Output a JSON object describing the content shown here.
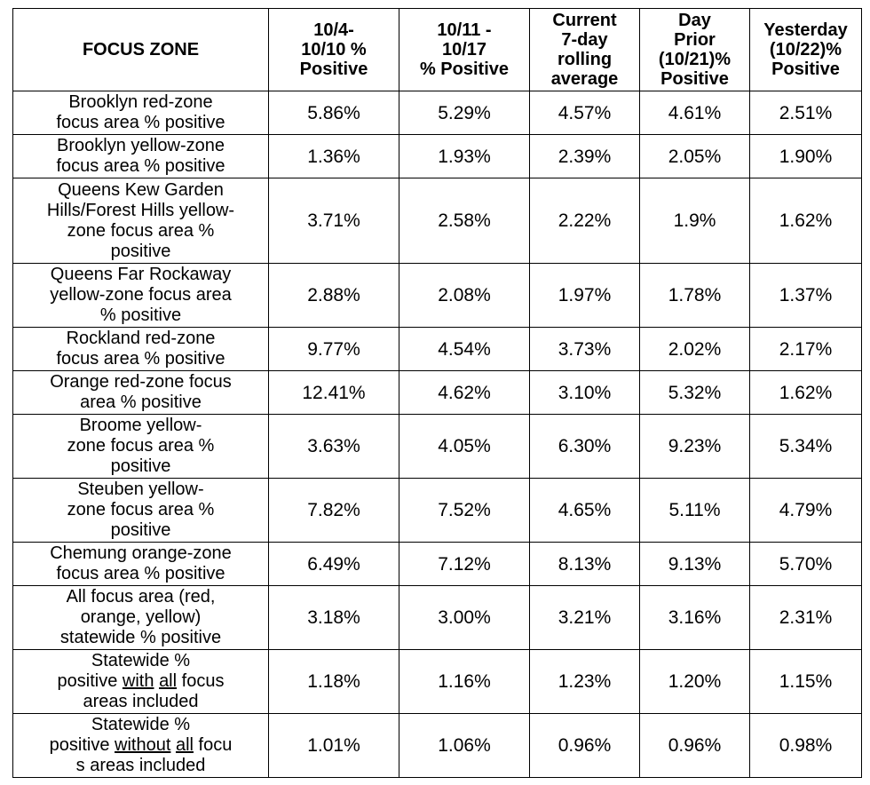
{
  "table": {
    "headers": [
      {
        "lines": [
          "FOCUS ZONE"
        ]
      },
      {
        "lines": [
          "10/4-",
          "10/10 %",
          "Positive"
        ]
      },
      {
        "lines": [
          "10/11 -",
          "10/17",
          "% Positive"
        ]
      },
      {
        "lines": [
          "Current",
          "7-day",
          "rolling",
          "average"
        ]
      },
      {
        "lines": [
          "Day",
          "Prior",
          "(10/21)%",
          "Positive"
        ]
      },
      {
        "lines": [
          "Yesterday",
          "(10/22)%",
          "Positive"
        ]
      }
    ],
    "rows": [
      {
        "zone": [
          "Brooklyn red-zone",
          "focus area % positive"
        ],
        "values": [
          "5.86%",
          "5.29%",
          "4.57%",
          "4.61%",
          "2.51%"
        ]
      },
      {
        "zone": [
          "Brooklyn yellow-zone",
          "focus area % positive"
        ],
        "values": [
          "1.36%",
          "1.93%",
          "2.39%",
          "2.05%",
          "1.90%"
        ]
      },
      {
        "zone": [
          "Queens Kew Garden",
          "Hills/Forest Hills yellow-",
          "zone focus area %",
          "positive"
        ],
        "values": [
          "3.71%",
          "2.58%",
          "2.22%",
          "1.9%",
          "1.62%"
        ]
      },
      {
        "zone": [
          "Queens Far Rockaway",
          "yellow-zone focus area",
          "% positive"
        ],
        "values": [
          "2.88%",
          "2.08%",
          "1.97%",
          "1.78%",
          "1.37%"
        ]
      },
      {
        "zone": [
          "Rockland red-zone",
          "focus area % positive"
        ],
        "values": [
          "9.77%",
          "4.54%",
          "3.73%",
          "2.02%",
          "2.17%"
        ]
      },
      {
        "zone": [
          "Orange red-zone focus",
          "area % positive"
        ],
        "values": [
          "12.41%",
          "4.62%",
          "3.10%",
          "5.32%",
          "1.62%"
        ]
      },
      {
        "zone": [
          "Broome yellow-",
          "zone focus area %",
          "positive"
        ],
        "values": [
          "3.63%",
          "4.05%",
          "6.30%",
          "9.23%",
          "5.34%"
        ]
      },
      {
        "zone": [
          "Steuben yellow-",
          "zone focus area %",
          "positive"
        ],
        "values": [
          "7.82%",
          "7.52%",
          "4.65%",
          "5.11%",
          "4.79%"
        ]
      },
      {
        "zone": [
          "Chemung orange-zone",
          "focus area % positive"
        ],
        "values": [
          "6.49%",
          "7.12%",
          "8.13%",
          "9.13%",
          "5.70%"
        ]
      },
      {
        "zone": [
          "All focus area (red,",
          "orange, yellow)",
          "statewide % positive"
        ],
        "values": [
          "3.18%",
          "3.00%",
          "3.21%",
          "3.16%",
          "2.31%"
        ]
      },
      {
        "zone_line1": "Statewide %",
        "zone_line2_pre": "positive ",
        "zone_line2_u1": "with",
        "zone_line2_mid": " ",
        "zone_line2_u2": "all",
        "zone_line2_post": " focus",
        "zone_line3": "areas included",
        "values": [
          "1.18%",
          "1.16%",
          "1.23%",
          "1.20%",
          "1.15%"
        ]
      },
      {
        "zone_line1": "Statewide %",
        "zone_line2_pre": "positive ",
        "zone_line2_u1": "without",
        "zone_line2_mid": " ",
        "zone_line2_u2": "all",
        "zone_line2_post": " focu",
        "zone_line3": "s areas included",
        "values": [
          "1.01%",
          "1.06%",
          "0.96%",
          "0.96%",
          "0.98%"
        ]
      }
    ]
  }
}
